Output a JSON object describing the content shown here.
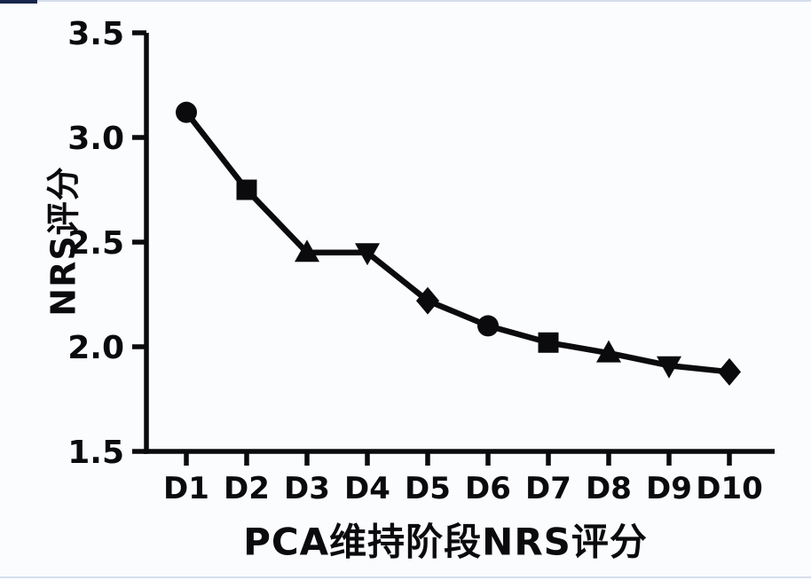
{
  "page": {
    "background": "#fbfcfe",
    "ink_color": "#0b0b0d",
    "accent_navy": "#16264c",
    "hairline_blue": "#d5deee"
  },
  "chart_data": {
    "type": "line",
    "title": "",
    "xlabel": "PCA维持阶段NRS评分",
    "ylabel": "NRS评分",
    "categories": [
      "D1",
      "D2",
      "D3",
      "D4",
      "D5",
      "D6",
      "D7",
      "D8",
      "D9",
      "D10"
    ],
    "series": [
      {
        "name": "NRS评分",
        "values": [
          3.12,
          2.75,
          2.45,
          2.45,
          2.22,
          2.1,
          2.02,
          1.97,
          1.91,
          1.88
        ],
        "color": "#0b0b0d",
        "markers": [
          "circle",
          "square",
          "triangle-up",
          "triangle-down",
          "diamond",
          "circle",
          "square",
          "triangle-up",
          "triangle-down",
          "diamond"
        ]
      }
    ],
    "ylim": [
      1.5,
      3.5
    ],
    "yticks": [
      1.5,
      2.0,
      2.5,
      3.0,
      3.5
    ],
    "ytick_labels": [
      "1.5",
      "2.0",
      "2.5",
      "3.0",
      "3.5"
    ],
    "grid": false,
    "legend": "none",
    "axes_frame": "left-bottom-only"
  }
}
